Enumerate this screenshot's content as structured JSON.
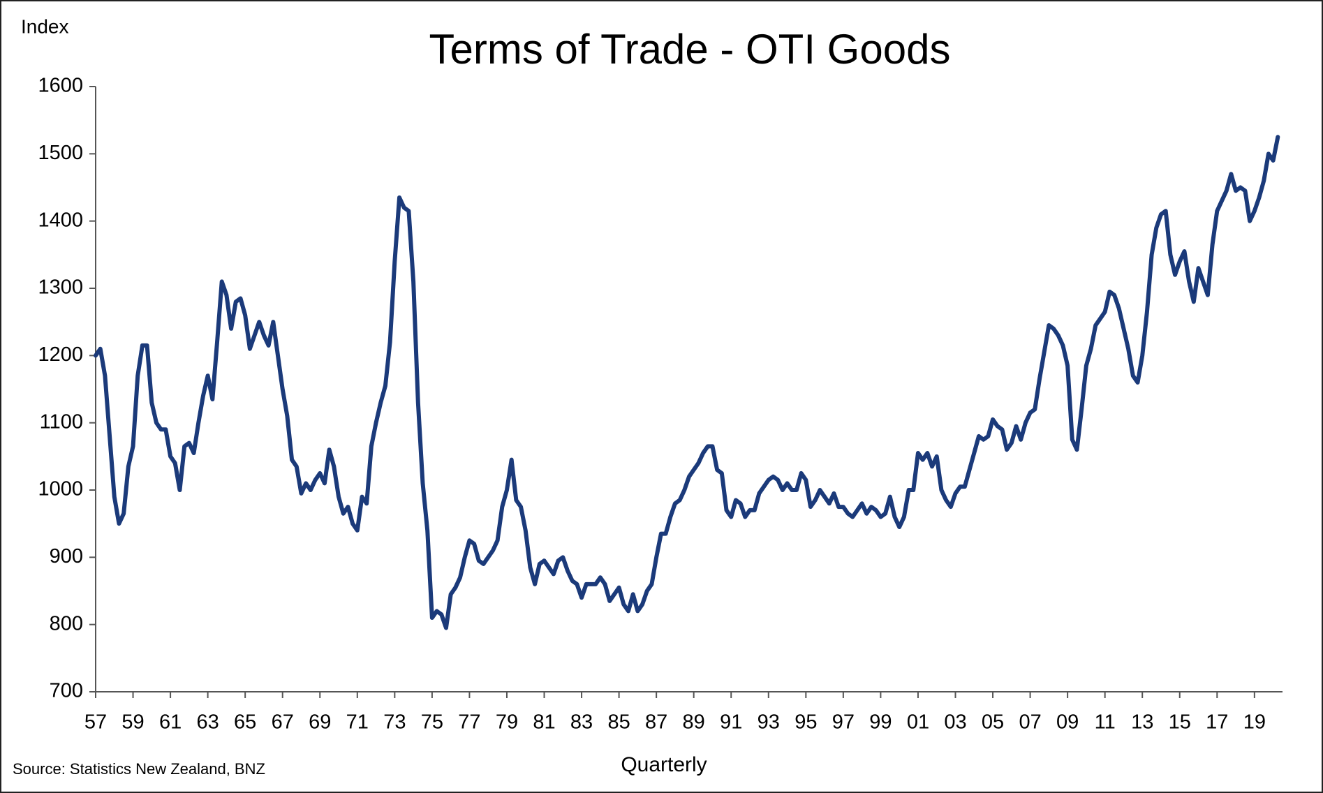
{
  "chart_data": {
    "type": "line",
    "title": "Terms of Trade - OTI Goods",
    "y_label": "Index",
    "x_label": "Quarterly",
    "source": "Source: Statistics New Zealand, BNZ",
    "color": "#1b3a7a",
    "grid": false,
    "ylim": [
      700,
      1600
    ],
    "yticks": [
      700,
      800,
      900,
      1000,
      1100,
      1200,
      1300,
      1400,
      1500,
      1600
    ],
    "categories": [
      "57",
      null,
      null,
      null,
      null,
      null,
      null,
      null,
      "59",
      null,
      null,
      null,
      null,
      null,
      null,
      null,
      "61",
      null,
      null,
      null,
      null,
      null,
      null,
      null,
      "63",
      null,
      null,
      null,
      null,
      null,
      null,
      null,
      "65",
      null,
      null,
      null,
      null,
      null,
      null,
      null,
      "67",
      null,
      null,
      null,
      null,
      null,
      null,
      null,
      "69",
      null,
      null,
      null,
      null,
      null,
      null,
      null,
      "71",
      null,
      null,
      null,
      null,
      null,
      null,
      null,
      "73",
      null,
      null,
      null,
      null,
      null,
      null,
      null,
      "75",
      null,
      null,
      null,
      null,
      null,
      null,
      null,
      "77",
      null,
      null,
      null,
      null,
      null,
      null,
      null,
      "79",
      null,
      null,
      null,
      null,
      null,
      null,
      null,
      "81",
      null,
      null,
      null,
      null,
      null,
      null,
      null,
      "83",
      null,
      null,
      null,
      null,
      null,
      null,
      null,
      "85",
      null,
      null,
      null,
      null,
      null,
      null,
      null,
      "87",
      null,
      null,
      null,
      null,
      null,
      null,
      null,
      "89",
      null,
      null,
      null,
      null,
      null,
      null,
      null,
      "91",
      null,
      null,
      null,
      null,
      null,
      null,
      null,
      "93",
      null,
      null,
      null,
      null,
      null,
      null,
      null,
      "95",
      null,
      null,
      null,
      null,
      null,
      null,
      null,
      "97",
      null,
      null,
      null,
      null,
      null,
      null,
      null,
      "99",
      null,
      null,
      null,
      null,
      null,
      null,
      null,
      "01",
      null,
      null,
      null,
      null,
      null,
      null,
      null,
      "03",
      null,
      null,
      null,
      null,
      null,
      null,
      null,
      "05",
      null,
      null,
      null,
      null,
      null,
      null,
      null,
      "07",
      null,
      null,
      null,
      null,
      null,
      null,
      null,
      "09",
      null,
      null,
      null,
      null,
      null,
      null,
      null,
      "11",
      null,
      null,
      null,
      null,
      null,
      null,
      null,
      "13",
      null,
      null,
      null,
      null,
      null,
      null,
      null,
      "15",
      null,
      null,
      null,
      null,
      null,
      null,
      null,
      "17",
      null,
      null,
      null,
      null,
      null,
      null,
      null,
      "19",
      null,
      null,
      null,
      null,
      null
    ],
    "values": [
      1200,
      1210,
      1170,
      1080,
      990,
      950,
      965,
      1035,
      1065,
      1170,
      1215,
      1215,
      1130,
      1100,
      1090,
      1090,
      1050,
      1040,
      1000,
      1065,
      1070,
      1055,
      1100,
      1140,
      1170,
      1135,
      1220,
      1310,
      1290,
      1240,
      1280,
      1285,
      1260,
      1210,
      1230,
      1250,
      1230,
      1215,
      1250,
      1200,
      1150,
      1110,
      1045,
      1035,
      995,
      1010,
      1000,
      1015,
      1025,
      1010,
      1060,
      1035,
      990,
      965,
      975,
      950,
      940,
      990,
      980,
      1065,
      1100,
      1130,
      1155,
      1220,
      1340,
      1435,
      1420,
      1415,
      1310,
      1130,
      1010,
      940,
      810,
      820,
      815,
      795,
      845,
      855,
      870,
      900,
      925,
      920,
      895,
      890,
      900,
      910,
      925,
      975,
      1000,
      1045,
      985,
      975,
      940,
      885,
      860,
      890,
      895,
      885,
      875,
      895,
      900,
      880,
      865,
      860,
      840,
      860,
      860,
      860,
      870,
      860,
      835,
      845,
      855,
      830,
      820,
      845,
      820,
      830,
      850,
      860,
      900,
      935,
      935,
      960,
      980,
      985,
      1000,
      1020,
      1030,
      1040,
      1055,
      1065,
      1065,
      1030,
      1025,
      970,
      960,
      985,
      980,
      960,
      970,
      970,
      995,
      1005,
      1015,
      1020,
      1015,
      1000,
      1010,
      1000,
      1000,
      1025,
      1015,
      975,
      985,
      1000,
      990,
      980,
      995,
      975,
      975,
      965,
      960,
      970,
      980,
      965,
      975,
      970,
      960,
      965,
      990,
      960,
      945,
      960,
      1000,
      1000,
      1055,
      1045,
      1055,
      1035,
      1050,
      1000,
      985,
      975,
      995,
      1005,
      1005,
      1030,
      1055,
      1080,
      1075,
      1080,
      1105,
      1095,
      1090,
      1060,
      1070,
      1095,
      1075,
      1100,
      1115,
      1120,
      1165,
      1205,
      1245,
      1240,
      1230,
      1215,
      1185,
      1075,
      1060,
      1120,
      1185,
      1210,
      1245,
      1255,
      1265,
      1295,
      1290,
      1270,
      1240,
      1210,
      1170,
      1160,
      1200,
      1265,
      1350,
      1390,
      1410,
      1415,
      1350,
      1320,
      1340,
      1355,
      1310,
      1280,
      1330,
      1310,
      1290,
      1365,
      1415,
      1430,
      1445,
      1470,
      1445,
      1450,
      1445,
      1400,
      1415,
      1435,
      1460,
      1500,
      1490,
      1525
    ]
  }
}
